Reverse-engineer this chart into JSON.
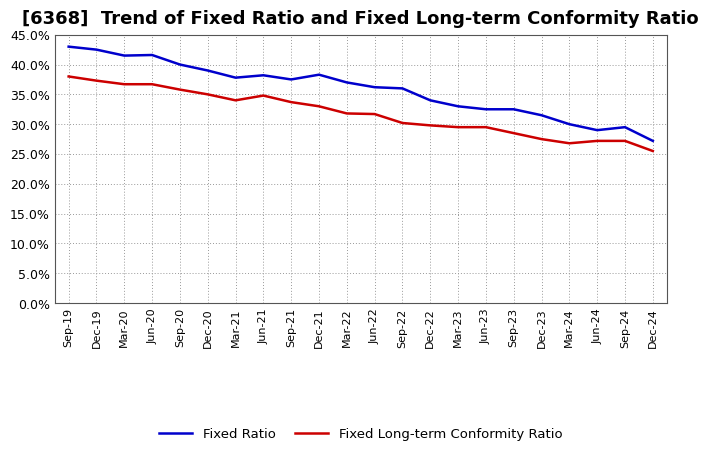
{
  "title": "[6368]  Trend of Fixed Ratio and Fixed Long-term Conformity Ratio",
  "x_labels": [
    "Sep-19",
    "Dec-19",
    "Mar-20",
    "Jun-20",
    "Sep-20",
    "Dec-20",
    "Mar-21",
    "Jun-21",
    "Sep-21",
    "Dec-21",
    "Mar-22",
    "Jun-22",
    "Sep-22",
    "Dec-22",
    "Mar-23",
    "Jun-23",
    "Sep-23",
    "Dec-23",
    "Mar-24",
    "Jun-24",
    "Sep-24",
    "Dec-24"
  ],
  "fixed_ratio": [
    0.43,
    0.425,
    0.415,
    0.416,
    0.4,
    0.39,
    0.378,
    0.382,
    0.375,
    0.383,
    0.37,
    0.362,
    0.36,
    0.34,
    0.33,
    0.325,
    0.325,
    0.315,
    0.3,
    0.29,
    0.295,
    0.272
  ],
  "fixed_lt_ratio": [
    0.38,
    0.373,
    0.367,
    0.367,
    0.358,
    0.35,
    0.34,
    0.348,
    0.337,
    0.33,
    0.318,
    0.317,
    0.302,
    0.298,
    0.295,
    0.295,
    0.285,
    0.275,
    0.268,
    0.272,
    0.272,
    0.255
  ],
  "ylim": [
    0.0,
    0.45
  ],
  "yticks": [
    0.0,
    0.05,
    0.1,
    0.15,
    0.2,
    0.25,
    0.3,
    0.35,
    0.4,
    0.45
  ],
  "fixed_ratio_color": "#0000CC",
  "fixed_lt_ratio_color": "#CC0000",
  "background_color": "#ffffff",
  "grid_color": "#aaaaaa",
  "legend_fixed": "Fixed Ratio",
  "legend_lt": "Fixed Long-term Conformity Ratio",
  "title_fontsize": 13,
  "tick_fontsize": 9,
  "xtick_fontsize": 8
}
